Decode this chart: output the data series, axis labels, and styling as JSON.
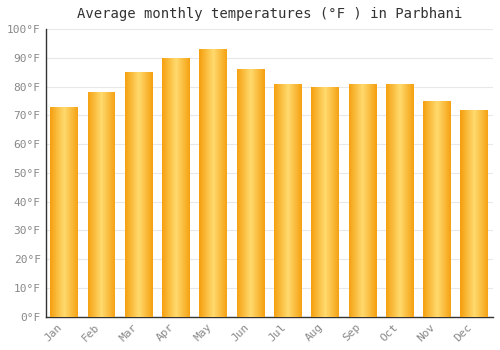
{
  "title": "Average monthly temperatures (°F ) in Parbhani",
  "months": [
    "Jan",
    "Feb",
    "Mar",
    "Apr",
    "May",
    "Jun",
    "Jul",
    "Aug",
    "Sep",
    "Oct",
    "Nov",
    "Dec"
  ],
  "values": [
    73,
    78,
    85,
    90,
    93,
    86,
    81,
    80,
    81,
    81,
    75,
    72
  ],
  "bar_color_main": "#FDB833",
  "bar_color_dark": "#F5A010",
  "bar_color_light": "#FFDA6E",
  "background_color": "#FFFFFF",
  "grid_color": "#E8E8E8",
  "ytick_labels": [
    "0°F",
    "10°F",
    "20°F",
    "30°F",
    "40°F",
    "50°F",
    "60°F",
    "70°F",
    "80°F",
    "90°F",
    "100°F"
  ],
  "ytick_values": [
    0,
    10,
    20,
    30,
    40,
    50,
    60,
    70,
    80,
    90,
    100
  ],
  "ylim": [
    0,
    100
  ],
  "title_fontsize": 10,
  "tick_fontsize": 8,
  "tick_color": "#888888",
  "label_color": "#888888",
  "bar_width": 0.75
}
